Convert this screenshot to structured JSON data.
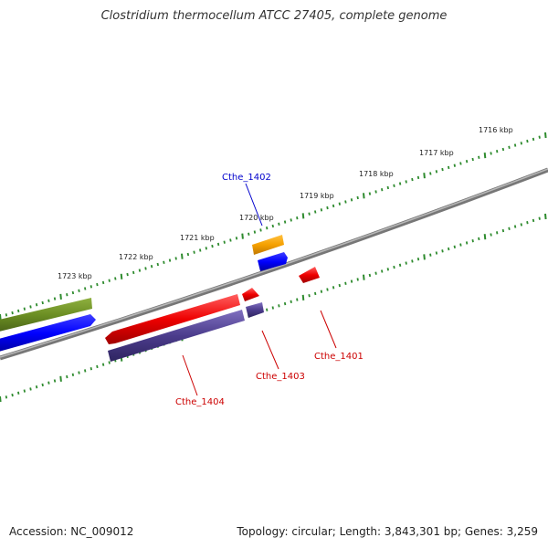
{
  "title": "Clostridium thermocellum ATCC 27405, complete genome",
  "footer": {
    "accession": "Accession: NC_009012",
    "topology": "Topology: circular; Length: 3,843,301 bp; Genes: 3,259"
  },
  "tick_labels": [
    "1716 kbp",
    "1717 kbp",
    "1718 kbp",
    "1719 kbp",
    "1720 kbp",
    "1721 kbp",
    "1722 kbp",
    "1723 kbp"
  ],
  "gene_labels": [
    {
      "text": "Cthe_1402",
      "color": "#0000cc"
    },
    {
      "text": "Cthe_1401",
      "color": "#cc0000"
    },
    {
      "text": "Cthe_1403",
      "color": "#cc0000"
    },
    {
      "text": "Cthe_1404",
      "color": "#cc0000"
    }
  ],
  "colors": {
    "backbone": "#808080",
    "tick": "#2e8b2e",
    "forward_gene": "#0000ff",
    "reverse_gene": "#ee0000",
    "olive_feature": "#6b8e23",
    "orange_feature": "#f5a000",
    "purple_feature": "#4b3c8c"
  }
}
